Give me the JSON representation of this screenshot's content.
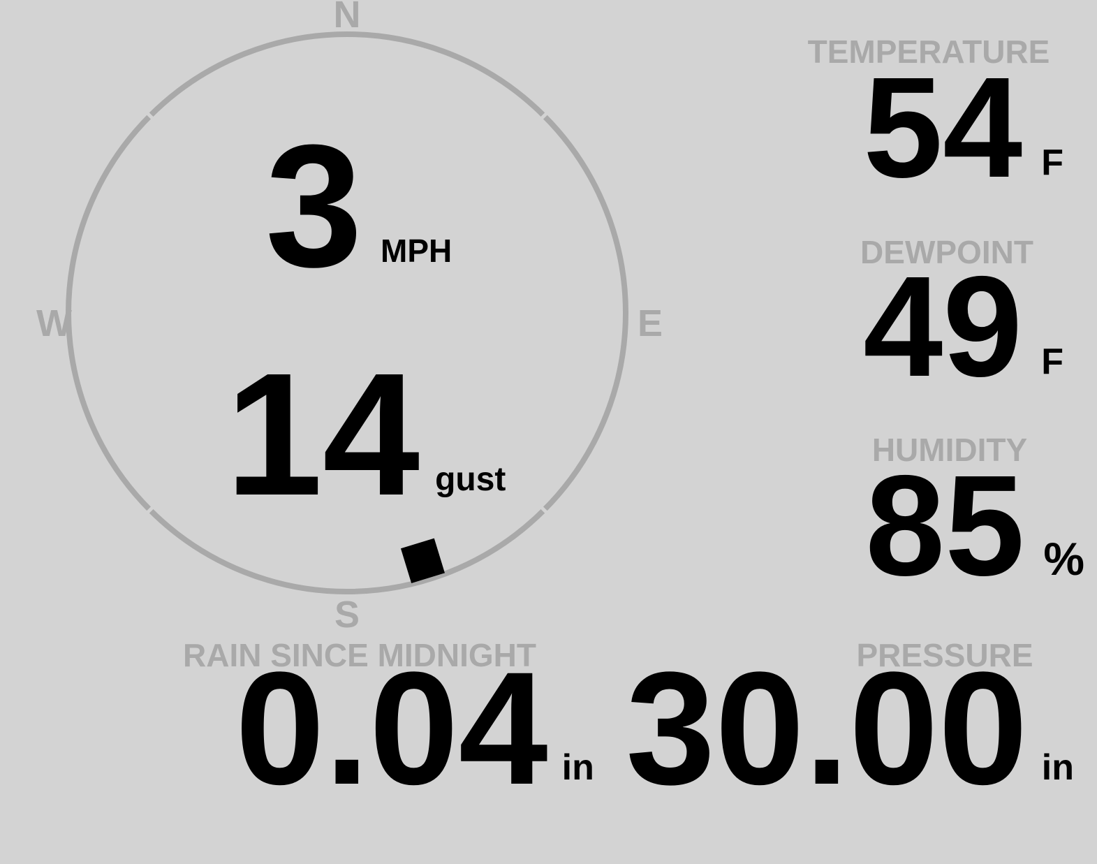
{
  "display": {
    "wind": {
      "speed_value": "3",
      "speed_unit": "MPH",
      "gust_value": "14",
      "gust_unit": "gust",
      "direction_bearing_deg": 163,
      "compass_labels": {
        "n": "N",
        "e": "E",
        "s": "S",
        "w": "W"
      }
    },
    "temperature": {
      "label": "TEMPERATURE",
      "value": "54",
      "unit": "F"
    },
    "dewpoint": {
      "label": "DEWPOINT",
      "value": "49",
      "unit": "F"
    },
    "humidity": {
      "label": "HUMIDITY",
      "value": "85",
      "unit": "%"
    },
    "rain": {
      "label": "RAIN SINCE MIDNIGHT",
      "value": "0.04",
      "unit": "in"
    },
    "pressure": {
      "label": "PRESSURE",
      "value": "30.00",
      "unit": "in"
    }
  },
  "colors": {
    "background": "#d3d3d3",
    "muted": "#a9a9a9",
    "value": "#000000"
  }
}
